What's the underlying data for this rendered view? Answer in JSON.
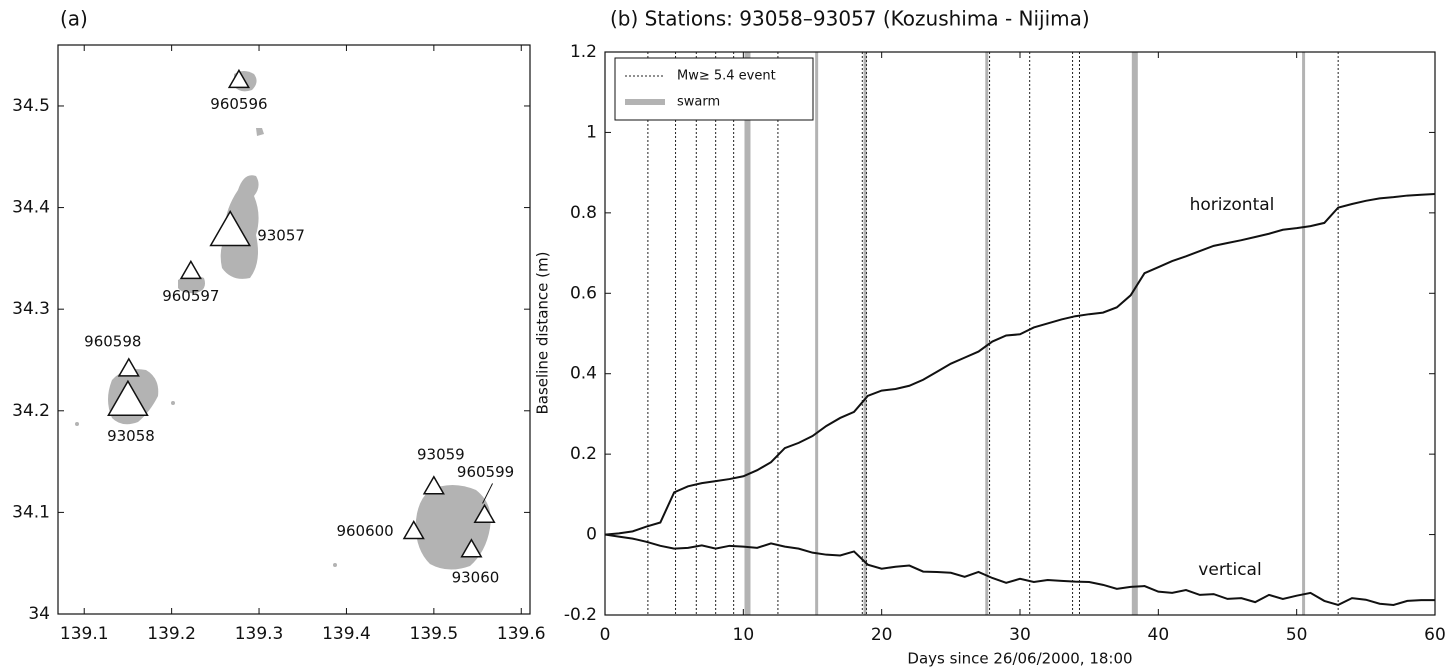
{
  "chart_data": [
    {
      "type": "scatter",
      "title": "(a)",
      "labels": [
        "960596",
        "93057",
        "960597",
        "960598",
        "93058",
        "93059",
        "960599",
        "960600",
        "93060"
      ],
      "x": [
        139.277,
        139.267,
        139.222,
        139.151,
        139.15,
        139.5,
        139.558,
        139.477,
        139.543
      ],
      "y": [
        34.525,
        34.376,
        34.337,
        34.241,
        34.209,
        34.125,
        34.097,
        34.081,
        34.063
      ],
      "xlim": [
        139.07,
        139.61
      ],
      "ylim": [
        34,
        34.56
      ],
      "xticks": [
        139.1,
        139.2,
        139.3,
        139.4,
        139.5,
        139.6
      ],
      "yticks": [
        34,
        34.1,
        34.2,
        34.3,
        34.4,
        34.5
      ],
      "land_color": "#b3b3b3"
    },
    {
      "type": "line",
      "title": "(b) Stations: 93058–93057 (Kozushima - Nijima)",
      "xlabel": "Days since 26/06/2000, 18:00",
      "ylabel": "Baseline distance (m)",
      "x": [
        0,
        1,
        2,
        3,
        4,
        5,
        6,
        7,
        8,
        9,
        10,
        11,
        12,
        13,
        14,
        15,
        16,
        17,
        18,
        19,
        20,
        21,
        22,
        23,
        24,
        25,
        26,
        27,
        28,
        29,
        30,
        31,
        32,
        33,
        34,
        35,
        36,
        37,
        38,
        39,
        40,
        41,
        42,
        43,
        44,
        45,
        46,
        47,
        48,
        49,
        50,
        51,
        52,
        53,
        54,
        55,
        56,
        57,
        58,
        59,
        60
      ],
      "series": [
        {
          "name": "horizontal",
          "color": "#111111",
          "values": [
            0,
            0.003,
            0.008,
            0.02,
            0.03,
            0.105,
            0.12,
            0.128,
            0.133,
            0.138,
            0.145,
            0.16,
            0.18,
            0.215,
            0.228,
            0.245,
            0.27,
            0.29,
            0.305,
            0.345,
            0.358,
            0.362,
            0.37,
            0.385,
            0.405,
            0.425,
            0.44,
            0.455,
            0.48,
            0.495,
            0.498,
            0.515,
            0.525,
            0.535,
            0.543,
            0.548,
            0.552,
            0.565,
            0.595,
            0.65,
            0.665,
            0.68,
            0.692,
            0.705,
            0.718,
            0.725,
            0.732,
            0.74,
            0.748,
            0.758,
            0.762,
            0.767,
            0.775,
            0.813,
            0.822,
            0.83,
            0.836,
            0.839,
            0.843,
            0.845,
            0.847
          ]
        },
        {
          "name": "vertical",
          "color": "#111111",
          "values": [
            0,
            -0.005,
            -0.01,
            -0.018,
            -0.028,
            -0.035,
            -0.033,
            -0.027,
            -0.035,
            -0.028,
            -0.03,
            -0.033,
            -0.022,
            -0.03,
            -0.035,
            -0.045,
            -0.05,
            -0.052,
            -0.042,
            -0.075,
            -0.085,
            -0.08,
            -0.077,
            -0.092,
            -0.093,
            -0.095,
            -0.105,
            -0.093,
            -0.108,
            -0.12,
            -0.11,
            -0.118,
            -0.113,
            -0.115,
            -0.117,
            -0.118,
            -0.125,
            -0.135,
            -0.13,
            -0.128,
            -0.142,
            -0.145,
            -0.138,
            -0.15,
            -0.148,
            -0.16,
            -0.158,
            -0.168,
            -0.15,
            -0.16,
            -0.152,
            -0.145,
            -0.165,
            -0.175,
            -0.158,
            -0.162,
            -0.172,
            -0.175,
            -0.165,
            -0.163,
            -0.163
          ]
        }
      ],
      "events": [
        3.1,
        5.1,
        6.6,
        8.0,
        9.3,
        12.5,
        18.6,
        18.9,
        27.8,
        30.7,
        33.8,
        34.3,
        53.0
      ],
      "event_label": "Mw≥ 5.4 event",
      "event_color": "#222222",
      "swarms": [
        10.3,
        15.3,
        18.8,
        27.6,
        38.3,
        50.5
      ],
      "swarm_label": "swarm",
      "swarm_color": "#b3b3b3",
      "xlim": [
        0,
        60
      ],
      "ylim": [
        -0.2,
        1.2
      ],
      "xticks": [
        0,
        10,
        20,
        30,
        40,
        50,
        60
      ],
      "yticks": [
        -0.2,
        0,
        0.2,
        0.4,
        0.6,
        0.8,
        1,
        1.2
      ],
      "legend": "upper left"
    }
  ]
}
